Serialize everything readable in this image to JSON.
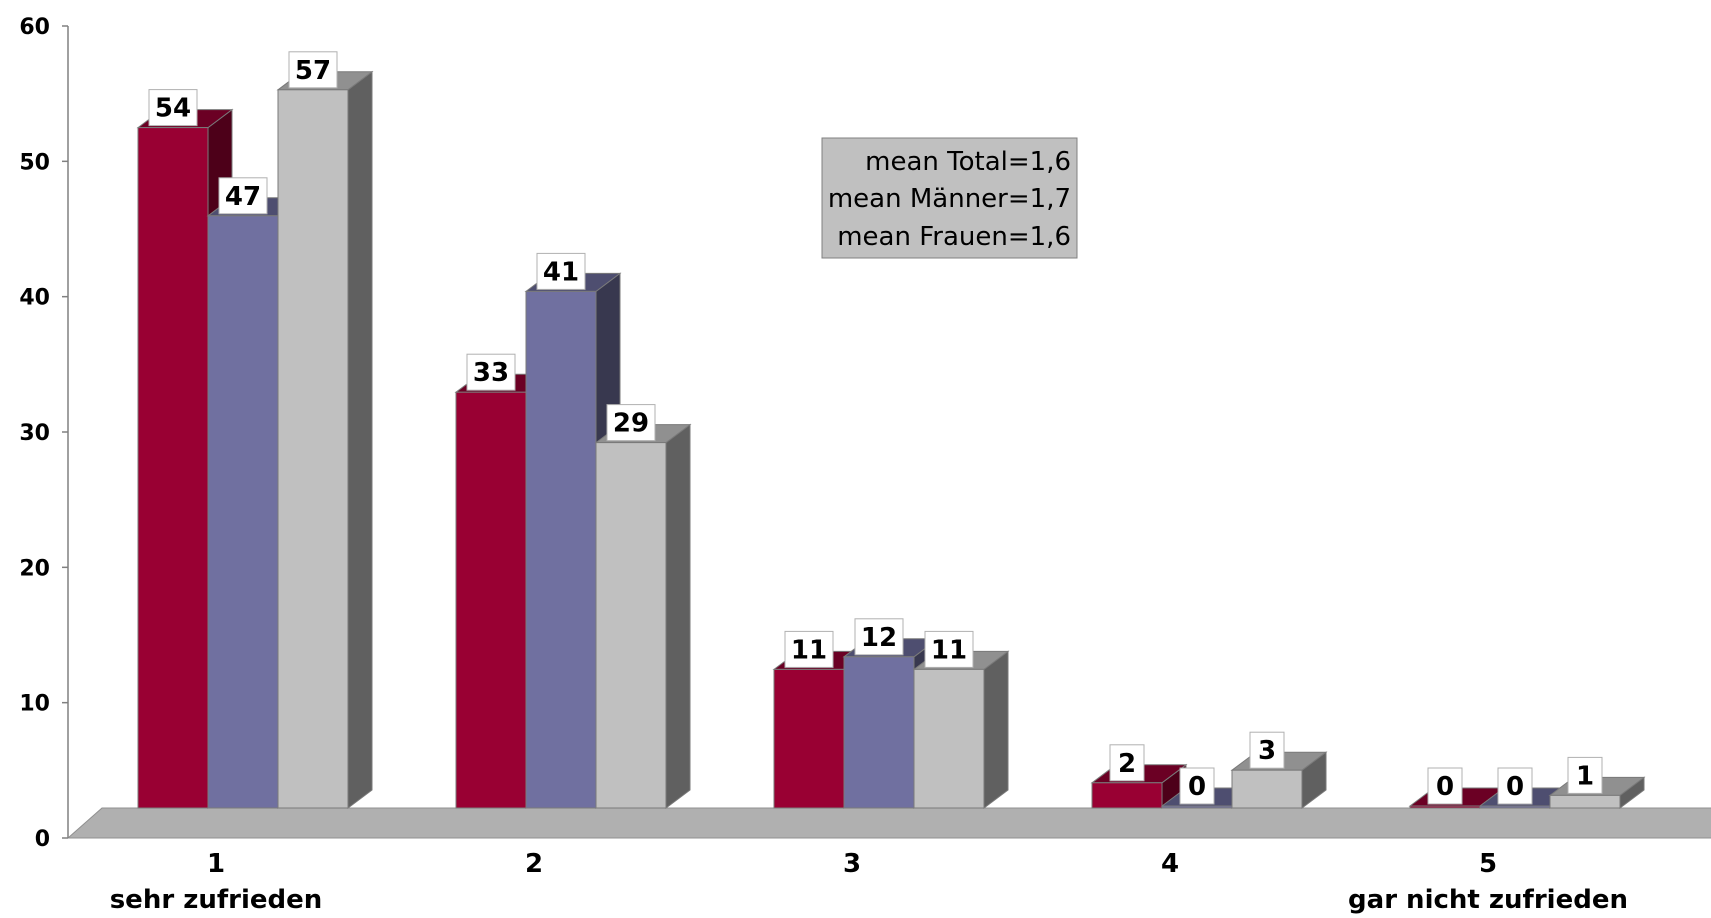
{
  "chart_data": {
    "type": "bar",
    "categories": [
      "1",
      "2",
      "3",
      "4",
      "5"
    ],
    "category_sublabels": [
      "sehr zufrieden",
      "",
      "",
      "",
      "gar nicht zufrieden"
    ],
    "series": [
      {
        "values": [
          54,
          33,
          11,
          2,
          0
        ],
        "color": "#990033",
        "side_color": "#4d0019",
        "top_color": "#6b0024"
      },
      {
        "values": [
          47,
          41,
          12,
          0,
          0
        ],
        "color": "#7070a0",
        "side_color": "#38384f",
        "top_color": "#4e4e70"
      },
      {
        "values": [
          57,
          29,
          11,
          3,
          1
        ],
        "color": "#c0c0c0",
        "side_color": "#606060",
        "top_color": "#909090"
      }
    ],
    "ylim": [
      0,
      60
    ],
    "yticks": [
      0,
      10,
      20,
      30,
      40,
      50,
      60
    ],
    "grid": false,
    "legend": "none",
    "floor_color": "#b0b0b0",
    "annotation": {
      "lines": [
        "mean Total=1,6",
        "mean Männer=1,7",
        "mean Frauen=1,6"
      ],
      "background": "#c0c0c0"
    }
  }
}
